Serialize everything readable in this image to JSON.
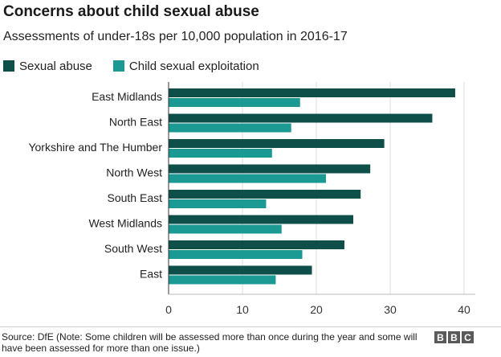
{
  "chart_data": {
    "type": "bar",
    "orientation": "horizontal",
    "title": "Concerns about child sexual abuse",
    "subtitle": "Assessments of under-18s per 10,000 population in 2016-17",
    "categories": [
      "East Midlands",
      "North East",
      "Yorkshire and The Humber",
      "North West",
      "South East",
      "West Midlands",
      "South West",
      "East"
    ],
    "series": [
      {
        "name": "Sexual abuse",
        "color": "#0e4f4a",
        "values": [
          38.8,
          35.7,
          29.2,
          27.3,
          26.0,
          25.0,
          23.8,
          19.4
        ]
      },
      {
        "name": "Child sexual exploitation",
        "color": "#1b9a94",
        "values": [
          17.8,
          16.6,
          14.0,
          21.3,
          13.2,
          15.3,
          18.1,
          14.5
        ]
      }
    ],
    "xlim": [
      0,
      40
    ],
    "xticks": [
      0,
      10,
      20,
      30,
      40
    ],
    "grid": true,
    "legend_position": "top-left"
  },
  "footer": {
    "source": "Source: DfE (Note: Some children will be assessed more than once during the year and some will have been assessed for more than one issue.)",
    "logo_letters": [
      "B",
      "B",
      "C"
    ]
  }
}
